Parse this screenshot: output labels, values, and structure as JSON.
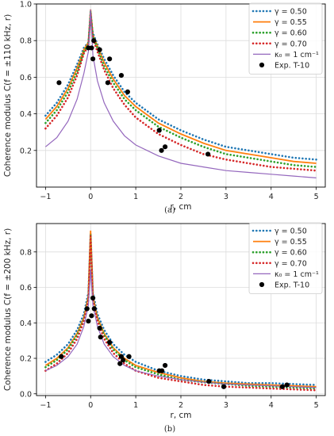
{
  "chart_data": [
    {
      "type": "line",
      "panel_label": "(a)",
      "xlabel": "r, cm",
      "ylabel": "Coherence modulus C(f = ±110 kHz, r)",
      "xlim": [
        -1.2,
        5.2
      ],
      "ylim": [
        0.0,
        1.0
      ],
      "x_ticks": [
        -1,
        0,
        1,
        2,
        3,
        4,
        5
      ],
      "x_tick_labels": [
        "−1",
        "0",
        "1",
        "2",
        "3",
        "4",
        "5"
      ],
      "y_ticks": [
        0.2,
        0.4,
        0.6,
        0.8,
        1.0
      ],
      "y_tick_labels": [
        "0.2",
        "0.4",
        "0.6",
        "0.8",
        "1.0"
      ],
      "grid": true,
      "legend_position": "top-right",
      "series": [
        {
          "name": "γ = 0.50",
          "color": "#1f77b4",
          "style": "dotted",
          "x": [
            -1,
            -0.75,
            -0.5,
            -0.3,
            -0.15,
            -0.05,
            0,
            0.05,
            0.15,
            0.3,
            0.5,
            0.75,
            1,
            1.5,
            2,
            2.5,
            3,
            3.5,
            4,
            4.5,
            5
          ],
          "y": [
            0.39,
            0.46,
            0.56,
            0.67,
            0.76,
            0.79,
            0.92,
            0.84,
            0.78,
            0.7,
            0.61,
            0.52,
            0.46,
            0.37,
            0.31,
            0.26,
            0.22,
            0.2,
            0.18,
            0.16,
            0.15
          ]
        },
        {
          "name": "γ = 0.55",
          "color": "#ff7f0e",
          "style": "solid",
          "x": [
            -1,
            -0.75,
            -0.5,
            -0.3,
            -0.15,
            -0.05,
            0,
            0.05,
            0.15,
            0.3,
            0.5,
            0.75,
            1,
            1.5,
            2,
            2.5,
            3,
            3.5,
            4,
            4.5,
            5
          ],
          "y": [
            0.37,
            0.44,
            0.54,
            0.65,
            0.75,
            0.79,
            0.97,
            0.83,
            0.77,
            0.68,
            0.59,
            0.5,
            0.44,
            0.35,
            0.29,
            0.24,
            0.2,
            0.18,
            0.16,
            0.14,
            0.13
          ]
        },
        {
          "name": "γ = 0.60",
          "color": "#2ca02c",
          "style": "dotted",
          "x": [
            -1,
            -0.75,
            -0.5,
            -0.3,
            -0.15,
            -0.05,
            0,
            0.05,
            0.15,
            0.3,
            0.5,
            0.75,
            1,
            1.5,
            2,
            2.5,
            3,
            3.5,
            4,
            4.5,
            5
          ],
          "y": [
            0.35,
            0.42,
            0.52,
            0.63,
            0.74,
            0.78,
            0.96,
            0.82,
            0.76,
            0.66,
            0.57,
            0.48,
            0.42,
            0.33,
            0.27,
            0.22,
            0.18,
            0.16,
            0.14,
            0.12,
            0.11
          ]
        },
        {
          "name": "γ = 0.70",
          "color": "#d62728",
          "style": "dotted",
          "x": [
            -1,
            -0.75,
            -0.5,
            -0.3,
            -0.15,
            -0.05,
            0,
            0.05,
            0.15,
            0.3,
            0.5,
            0.75,
            1,
            1.5,
            2,
            2.5,
            3,
            3.5,
            4,
            4.5,
            5
          ],
          "y": [
            0.32,
            0.39,
            0.49,
            0.61,
            0.73,
            0.77,
            0.95,
            0.81,
            0.74,
            0.64,
            0.54,
            0.45,
            0.38,
            0.29,
            0.23,
            0.18,
            0.15,
            0.13,
            0.11,
            0.1,
            0.09
          ]
        },
        {
          "name": "κ₀ = 1 cm⁻¹",
          "color": "#9467bd",
          "style": "solid",
          "x": [
            -1,
            -0.75,
            -0.5,
            -0.3,
            -0.15,
            -0.05,
            0,
            0.05,
            0.15,
            0.3,
            0.5,
            0.75,
            1,
            1.5,
            2,
            2.5,
            3,
            3.5,
            4,
            4.5,
            5
          ],
          "y": [
            0.22,
            0.27,
            0.36,
            0.48,
            0.62,
            0.74,
            0.97,
            0.72,
            0.58,
            0.46,
            0.36,
            0.28,
            0.23,
            0.17,
            0.13,
            0.11,
            0.09,
            0.08,
            0.07,
            0.06,
            0.05
          ]
        },
        {
          "name": "Exp. T-10",
          "color": "#000000",
          "style": "markers",
          "x": [
            -0.7,
            -0.05,
            0.02,
            0.05,
            0.07,
            0.2,
            0.38,
            0.42,
            0.68,
            0.82,
            1.52,
            1.57,
            1.65,
            2.6
          ],
          "y": [
            0.57,
            0.76,
            0.76,
            0.7,
            0.8,
            0.75,
            0.57,
            0.7,
            0.61,
            0.52,
            0.31,
            0.2,
            0.22,
            0.18
          ]
        }
      ]
    },
    {
      "type": "line",
      "panel_label": "(b)",
      "xlabel": "r, cm",
      "ylabel": "Coherence modulus C(f = ±200 kHz, r)",
      "xlim": [
        -1.2,
        5.2
      ],
      "ylim": [
        -0.01,
        0.96
      ],
      "x_ticks": [
        -1,
        0,
        1,
        2,
        3,
        4,
        5
      ],
      "x_tick_labels": [
        "−1",
        "0",
        "1",
        "2",
        "3",
        "4",
        "5"
      ],
      "y_ticks": [
        0.0,
        0.2,
        0.4,
        0.6,
        0.8
      ],
      "y_tick_labels": [
        "0.0",
        "0.2",
        "0.4",
        "0.6",
        "0.8"
      ],
      "grid": true,
      "legend_position": "top-right",
      "series": [
        {
          "name": "γ = 0.50",
          "color": "#1f77b4",
          "style": "dotted",
          "x": [
            -1,
            -0.75,
            -0.5,
            -0.3,
            -0.15,
            -0.05,
            0,
            0.05,
            0.15,
            0.3,
            0.5,
            0.75,
            1,
            1.5,
            2,
            2.5,
            3,
            3.5,
            4,
            4.5,
            5
          ],
          "y": [
            0.18,
            0.22,
            0.28,
            0.36,
            0.45,
            0.57,
            0.9,
            0.57,
            0.45,
            0.36,
            0.28,
            0.22,
            0.18,
            0.13,
            0.1,
            0.08,
            0.07,
            0.06,
            0.06,
            0.055,
            0.05
          ]
        },
        {
          "name": "γ = 0.55",
          "color": "#ff7f0e",
          "style": "solid",
          "x": [
            -1,
            -0.75,
            -0.5,
            -0.3,
            -0.15,
            -0.05,
            0,
            0.05,
            0.15,
            0.3,
            0.5,
            0.75,
            1,
            1.5,
            2,
            2.5,
            3,
            3.5,
            4,
            4.5,
            5
          ],
          "y": [
            0.16,
            0.2,
            0.26,
            0.34,
            0.43,
            0.55,
            0.92,
            0.55,
            0.43,
            0.34,
            0.26,
            0.2,
            0.16,
            0.12,
            0.09,
            0.07,
            0.06,
            0.055,
            0.05,
            0.045,
            0.04
          ]
        },
        {
          "name": "γ = 0.60",
          "color": "#2ca02c",
          "style": "dotted",
          "x": [
            -1,
            -0.75,
            -0.5,
            -0.3,
            -0.15,
            -0.05,
            0,
            0.05,
            0.15,
            0.3,
            0.5,
            0.75,
            1,
            1.5,
            2,
            2.5,
            3,
            3.5,
            4,
            4.5,
            5
          ],
          "y": [
            0.15,
            0.19,
            0.25,
            0.33,
            0.42,
            0.54,
            0.9,
            0.54,
            0.42,
            0.33,
            0.25,
            0.19,
            0.15,
            0.11,
            0.08,
            0.065,
            0.055,
            0.045,
            0.04,
            0.035,
            0.03
          ]
        },
        {
          "name": "γ = 0.70",
          "color": "#d62728",
          "style": "dotted",
          "x": [
            -1,
            -0.75,
            -0.5,
            -0.3,
            -0.15,
            -0.05,
            0,
            0.05,
            0.15,
            0.3,
            0.5,
            0.75,
            1,
            1.5,
            2,
            2.5,
            3,
            3.5,
            4,
            4.5,
            5
          ],
          "y": [
            0.13,
            0.17,
            0.23,
            0.31,
            0.41,
            0.53,
            0.89,
            0.53,
            0.41,
            0.31,
            0.23,
            0.17,
            0.13,
            0.09,
            0.07,
            0.05,
            0.04,
            0.035,
            0.03,
            0.025,
            0.02
          ]
        },
        {
          "name": "κ₀ = 1 cm⁻¹",
          "color": "#9467bd",
          "style": "solid",
          "x": [
            -1,
            -0.75,
            -0.5,
            -0.3,
            -0.15,
            -0.05,
            0,
            0.05,
            0.15,
            0.3,
            0.5,
            0.75,
            1,
            1.5,
            2,
            2.5,
            3,
            3.5,
            4,
            4.5,
            5
          ],
          "y": [
            0.13,
            0.16,
            0.21,
            0.28,
            0.38,
            0.5,
            0.7,
            0.5,
            0.38,
            0.28,
            0.21,
            0.16,
            0.13,
            0.1,
            0.08,
            0.065,
            0.055,
            0.05,
            0.045,
            0.04,
            0.035
          ]
        },
        {
          "name": "Exp. T-10",
          "color": "#000000",
          "style": "markers",
          "x": [
            -0.65,
            -0.08,
            -0.05,
            0.02,
            0.05,
            0.08,
            0.2,
            0.22,
            0.42,
            0.65,
            0.68,
            0.72,
            0.85,
            1.52,
            1.58,
            1.65,
            2.62,
            2.95,
            4.25,
            4.35
          ],
          "y": [
            0.21,
            0.48,
            0.41,
            0.44,
            0.54,
            0.48,
            0.37,
            0.32,
            0.29,
            0.17,
            0.21,
            0.19,
            0.21,
            0.13,
            0.13,
            0.16,
            0.07,
            0.04,
            0.04,
            0.05
          ]
        }
      ]
    }
  ]
}
